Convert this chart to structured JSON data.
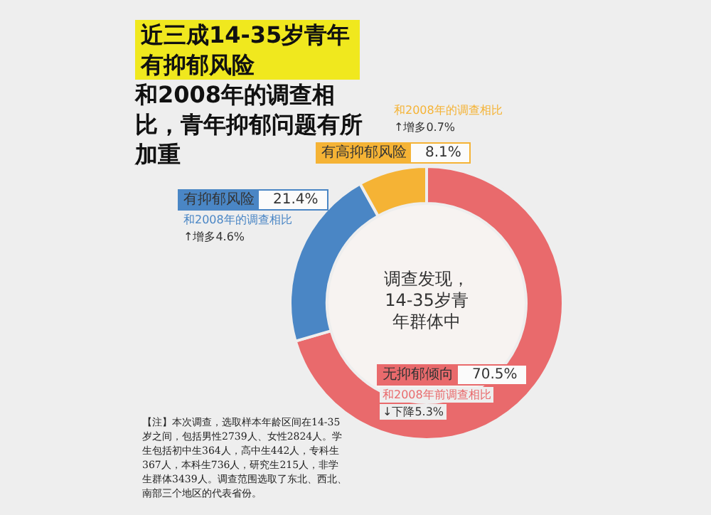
{
  "chart_data": {
    "type": "donut",
    "title": "近三成14-35岁青年有抑郁风险",
    "subtitle": "和2008年的调查相比，青年抑郁问题有所加重",
    "categories": [
      "无抑郁倾向",
      "有抑郁风险",
      "有高抑郁风险"
    ],
    "values": [
      70.5,
      21.4,
      8.1
    ],
    "value_labels": [
      "70.5%",
      "21.4%",
      "8.1%"
    ],
    "colors": [
      "#e96a6c",
      "#4a86c5",
      "#f5b335"
    ],
    "annotations": [
      "调查发现，14-35岁青年群体中",
      "和2008年前调查相比",
      "↓下降5.3%",
      "和2008年的调查相比",
      "↑增多4.6%",
      "和2008年的调查相比",
      "↑增多0.7%",
      "【注】本次调查，选取样本年龄区间在14-35岁之间，包括男性2739人、女性2824人。学生包括初中生364人，高中生442人，专科生367人，本科生736人，研究生215人，非学生群体3439人。调查范围选取了东北、西北、南部三个地区的代表省份。"
    ]
  }
}
